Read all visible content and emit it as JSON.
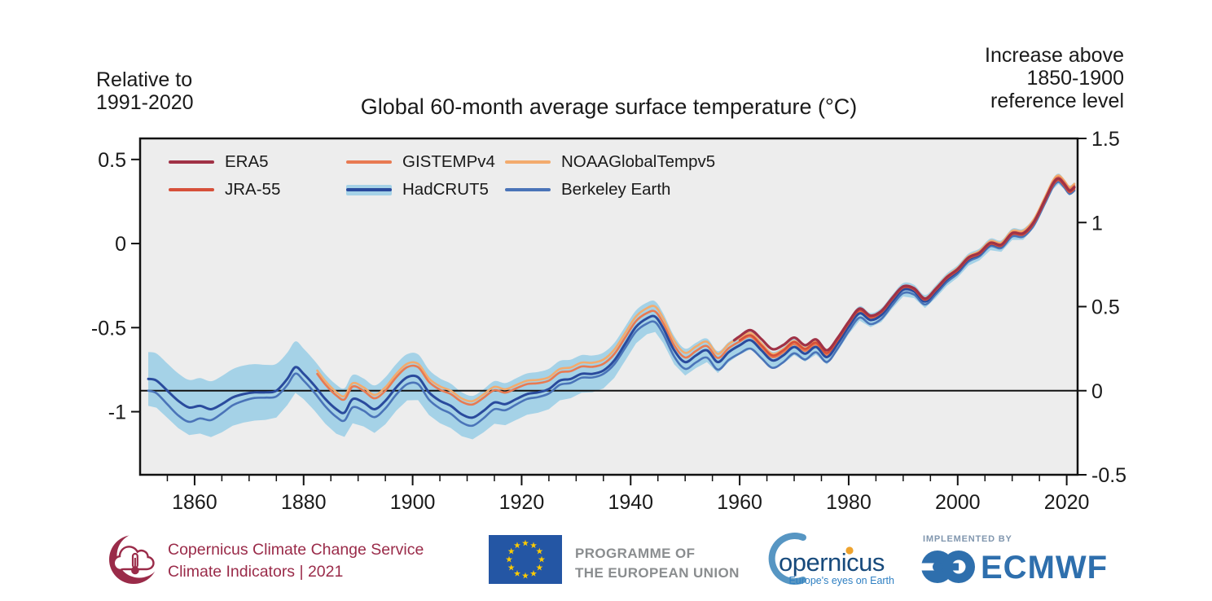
{
  "captions": {
    "left_line1": "Relative to",
    "left_line2": "1991-2020",
    "right_line1": "Increase above",
    "right_line2": "1850-1900",
    "right_line3": "reference level"
  },
  "chart_data": {
    "type": "line",
    "title": "Global 60-month average surface temperature (°C)",
    "plot_bg": "#ededed",
    "border_color": "#111111",
    "band_color": "#a5d2e7",
    "zero_line_value": 0,
    "scale_offset_left_vs_right": 0.875,
    "x_axis": {
      "min": 1850,
      "max": 2022,
      "major_ticks": [
        1860,
        1880,
        1900,
        1920,
        1940,
        1960,
        1980,
        2000,
        2020
      ],
      "minor_step": 5
    },
    "y_left_ticks": [
      [
        "0.5",
        0.5
      ],
      [
        "0",
        0
      ],
      [
        "-0.5",
        -0.5
      ],
      [
        "-1",
        -1
      ]
    ],
    "y_right_ticks": [
      [
        "1.5",
        1.5
      ],
      [
        "1",
        1
      ],
      [
        "0.5",
        0.5
      ],
      [
        "0",
        0
      ],
      [
        "-0.5",
        -0.5
      ]
    ],
    "y_right_range": [
      -0.5,
      1.5
    ],
    "base_curve": [
      [
        1851.5,
        0.07
      ],
      [
        1853,
        0.06
      ],
      [
        1855,
        0.0
      ],
      [
        1857,
        -0.06
      ],
      [
        1859,
        -0.1
      ],
      [
        1861,
        -0.09
      ],
      [
        1863,
        -0.11
      ],
      [
        1865,
        -0.08
      ],
      [
        1867,
        -0.04
      ],
      [
        1869,
        -0.02
      ],
      [
        1871,
        -0.01
      ],
      [
        1873,
        -0.01
      ],
      [
        1875,
        0.0
      ],
      [
        1877,
        0.07
      ],
      [
        1878.5,
        0.14
      ],
      [
        1880,
        0.1
      ],
      [
        1882,
        0.03
      ],
      [
        1884,
        -0.05
      ],
      [
        1886,
        -0.11
      ],
      [
        1887.5,
        -0.13
      ],
      [
        1889,
        -0.05
      ],
      [
        1891,
        -0.07
      ],
      [
        1893,
        -0.11
      ],
      [
        1895,
        -0.06
      ],
      [
        1897,
        0.02
      ],
      [
        1899,
        0.08
      ],
      [
        1901,
        0.08
      ],
      [
        1903,
        -0.01
      ],
      [
        1905,
        -0.06
      ],
      [
        1907,
        -0.09
      ],
      [
        1909,
        -0.14
      ],
      [
        1911,
        -0.16
      ],
      [
        1913,
        -0.12
      ],
      [
        1915,
        -0.07
      ],
      [
        1917,
        -0.08
      ],
      [
        1919,
        -0.05
      ],
      [
        1921,
        -0.02
      ],
      [
        1923,
        -0.01
      ],
      [
        1925,
        0.01
      ],
      [
        1927,
        0.06
      ],
      [
        1929,
        0.07
      ],
      [
        1931,
        0.1
      ],
      [
        1933,
        0.1
      ],
      [
        1935,
        0.12
      ],
      [
        1937,
        0.18
      ],
      [
        1939,
        0.28
      ],
      [
        1941,
        0.38
      ],
      [
        1943,
        0.43
      ],
      [
        1944.5,
        0.44
      ],
      [
        1946,
        0.37
      ],
      [
        1948,
        0.24
      ],
      [
        1950,
        0.17
      ],
      [
        1952,
        0.21
      ],
      [
        1954,
        0.24
      ],
      [
        1956,
        0.17
      ],
      [
        1958,
        0.23
      ],
      [
        1960,
        0.27
      ],
      [
        1962,
        0.3
      ],
      [
        1964,
        0.24
      ],
      [
        1966,
        0.18
      ],
      [
        1968,
        0.21
      ],
      [
        1970,
        0.26
      ],
      [
        1972,
        0.22
      ],
      [
        1974,
        0.26
      ],
      [
        1976,
        0.2
      ],
      [
        1978,
        0.28
      ],
      [
        1980,
        0.38
      ],
      [
        1982,
        0.46
      ],
      [
        1984,
        0.42
      ],
      [
        1986,
        0.45
      ],
      [
        1988,
        0.53
      ],
      [
        1990,
        0.6
      ],
      [
        1992,
        0.59
      ],
      [
        1994,
        0.53
      ],
      [
        1996,
        0.59
      ],
      [
        1998,
        0.66
      ],
      [
        2000,
        0.71
      ],
      [
        2002,
        0.78
      ],
      [
        2004,
        0.81
      ],
      [
        2006,
        0.87
      ],
      [
        2008,
        0.86
      ],
      [
        2010,
        0.93
      ],
      [
        2012,
        0.93
      ],
      [
        2014,
        1.0
      ],
      [
        2016,
        1.13
      ],
      [
        2017.5,
        1.23
      ],
      [
        2018.5,
        1.26
      ],
      [
        2019.5,
        1.23
      ],
      [
        2020.5,
        1.19
      ],
      [
        2021.4,
        1.21
      ]
    ],
    "series": [
      {
        "name": "ERA5",
        "color": "#a03246",
        "width": 3.2,
        "z": 6,
        "start": 1959,
        "end": 2021.4,
        "offset": [
          [
            1959,
            0.05
          ],
          [
            1965,
            0.07
          ],
          [
            1972,
            0.05
          ],
          [
            1980,
            0.03
          ],
          [
            1990,
            0.02
          ],
          [
            2005,
            0.01
          ],
          [
            2021.4,
            0.0
          ]
        ]
      },
      {
        "name": "JRA-55",
        "color": "#d6503a",
        "width": 2.6,
        "z": 5,
        "start": 1960,
        "end": 2021.4,
        "offset": [
          [
            1960,
            0.03
          ],
          [
            1970,
            0.03
          ],
          [
            1980,
            0.02
          ],
          [
            1995,
            0.01
          ],
          [
            2010,
            0.0
          ],
          [
            2021.4,
            -0.01
          ]
        ]
      },
      {
        "name": "GISTEMPv4",
        "color": "#e87a52",
        "width": 2.6,
        "z": 2,
        "start": 1882.5,
        "end": 2021.4,
        "offset": [
          [
            1882.5,
            0.09
          ],
          [
            1895,
            0.06
          ],
          [
            1902,
            0.06
          ],
          [
            1912,
            0.08
          ],
          [
            1925,
            0.05
          ],
          [
            1945,
            0.03
          ],
          [
            1965,
            0.02
          ],
          [
            1985,
            0.01
          ],
          [
            2021.4,
            0.01
          ]
        ]
      },
      {
        "name": "HadCRUT5",
        "color": "#2a4b9d",
        "width": 3.0,
        "z": 4,
        "start": 1851.5,
        "end": 2021.4,
        "offset": [
          [
            1851.5,
            0.0
          ]
        ],
        "band_halfwidth": [
          [
            1851.5,
            0.16
          ],
          [
            1870,
            0.17
          ],
          [
            1880,
            0.15
          ],
          [
            1895,
            0.14
          ],
          [
            1910,
            0.13
          ],
          [
            1925,
            0.12
          ],
          [
            1940,
            0.1
          ],
          [
            1950,
            0.08
          ],
          [
            1960,
            0.055
          ],
          [
            1975,
            0.045
          ],
          [
            1990,
            0.04
          ],
          [
            2005,
            0.035
          ],
          [
            2021.4,
            0.03
          ]
        ]
      },
      {
        "name": "NOAAGlobalTempv5",
        "color": "#f3ab6d",
        "width": 2.6,
        "z": 1,
        "start": 1882.5,
        "end": 2021.4,
        "offset": [
          [
            1882.5,
            0.11
          ],
          [
            1895,
            0.08
          ],
          [
            1902,
            0.08
          ],
          [
            1912,
            0.1
          ],
          [
            1925,
            0.07
          ],
          [
            1945,
            0.06
          ],
          [
            1965,
            0.04
          ],
          [
            1985,
            0.02
          ],
          [
            2021.4,
            0.02
          ]
        ]
      },
      {
        "name": "Berkeley Earth",
        "color": "#4a74b8",
        "width": 2.6,
        "z": 3,
        "start": 1851.5,
        "end": 2021.4,
        "offset": [
          [
            1851.5,
            -0.07
          ],
          [
            1858,
            -0.09
          ],
          [
            1866,
            -0.05
          ],
          [
            1872,
            -0.03
          ],
          [
            1880,
            -0.04
          ],
          [
            1890,
            -0.05
          ],
          [
            1900,
            -0.04
          ],
          [
            1910,
            -0.05
          ],
          [
            1920,
            -0.03
          ],
          [
            1935,
            -0.02
          ],
          [
            1950,
            -0.04
          ],
          [
            1962,
            -0.05
          ],
          [
            1975,
            -0.03
          ],
          [
            1990,
            -0.02
          ],
          [
            2005,
            -0.01
          ],
          [
            2021.4,
            -0.02
          ]
        ]
      }
    ]
  },
  "footer": {
    "c3s": {
      "line1": "Copernicus Climate Change Service",
      "line2": "Climate Indicators | 2021",
      "color": "#9a2b49"
    },
    "eu": {
      "line1": "PROGRAMME OF",
      "line2": "THE EUROPEAN UNION",
      "text_color": "#8a8d8f",
      "flag_blue": "#2456a4",
      "star_yellow": "#ffcc00"
    },
    "copernicus": {
      "wordmark": "opernicus",
      "tagline": "Europe's eyes on Earth",
      "word_color": "#174a7c",
      "tagline_color": "#2e7fc2",
      "swoosh_color": "#5796c3",
      "sun_color": "#eea32e"
    },
    "ecmwf": {
      "implemented_by": "IMPLEMENTED BY",
      "wordmark": "ECMWF",
      "blue": "#2e6fad",
      "impl_color": "#8096ae"
    }
  }
}
